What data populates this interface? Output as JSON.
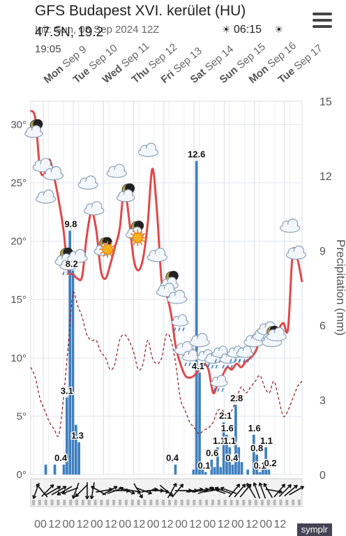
{
  "header": {
    "title": "GFS Budapest XVI. kerület (HU)",
    "init": "Init: Sun, 08 Sep 2024 12Z",
    "coords": "47.5N, 19.2",
    "coords_line2": "19:05",
    "sunrise": "06:15",
    "menu_icon": "hamburger-menu-icon",
    "brand": "symplr"
  },
  "chart_data": {
    "type": "line",
    "days": [
      {
        "day": "Mon",
        "date": "Sep 9"
      },
      {
        "day": "Tue",
        "date": "Sep 10"
      },
      {
        "day": "Wed",
        "date": "Sep 11"
      },
      {
        "day": "Thu",
        "date": "Sep 12"
      },
      {
        "day": "Fri",
        "date": "Sep 13"
      },
      {
        "day": "Sat",
        "date": "Sep 14"
      },
      {
        "day": "Sun",
        "date": "Sep 15"
      },
      {
        "day": "Mon",
        "date": "Sep 16"
      },
      {
        "day": "Tue",
        "date": "Sep 17"
      }
    ],
    "temp_axis": {
      "min": 0,
      "max": 32,
      "ticks": [
        "0°",
        "5°",
        "10°",
        "15°",
        "20°",
        "25°",
        "30°"
      ]
    },
    "precip_axis": {
      "min": 0,
      "max": 15,
      "ticks": [
        "0",
        "3",
        "6",
        "9",
        "12",
        "15"
      ],
      "label": "Precipitation (mm)"
    },
    "time_labels": [
      "00",
      "12",
      "00",
      "12",
      "00",
      "12",
      "00",
      "12",
      "00",
      "12",
      "00",
      "12",
      "00",
      "12",
      "00",
      "12",
      "00",
      "12"
    ],
    "temperature": [
      31.2,
      30.5,
      26.2,
      25.8,
      27.0,
      25.5,
      23.5,
      21.0,
      17.5,
      17.2,
      16.8,
      17.0,
      20.5,
      22.5,
      21.0,
      17.5,
      16.8,
      18.0,
      19.5,
      21.0,
      24.5,
      22.0,
      18.5,
      17.5,
      18.5,
      21.5,
      26.2,
      22.5,
      16.5,
      15.5,
      13.8,
      11.0,
      9.5,
      8.5,
      8.3,
      8.5,
      9.0,
      9.5,
      9.0,
      7.0,
      7.8,
      8.5,
      9.2,
      9.0,
      9.5,
      9.2,
      9.7,
      10.0,
      10.5,
      11.5,
      11.8,
      11.8,
      12.0,
      12.5,
      13.0,
      12.5,
      19.0,
      18.5,
      16.5
    ],
    "dewpoint": [
      9.2,
      8.3,
      6.5,
      5.5,
      4.5,
      3.9,
      3.4,
      6.5,
      11.0,
      15.5,
      14.5,
      13.5,
      12.0,
      11.5,
      11.5,
      10.5,
      10.0,
      9.0,
      9.5,
      11.5,
      12.0,
      11.5,
      10.5,
      9.0,
      9.5,
      11.5,
      10.0,
      9.5,
      10.0,
      12.0,
      11.5,
      9.5,
      6.5,
      5.5,
      4.5,
      4.0,
      3.5,
      3.8,
      4.0,
      4.5,
      5.5,
      5.5,
      5.0,
      5.5,
      6.5,
      7.5,
      7.0,
      7.5,
      8.0,
      8.5,
      7.5,
      7.0,
      8.0,
      6.5,
      5.0,
      5.5,
      6.5,
      7.5,
      8.0
    ],
    "precip_bars": [
      {
        "t": 5,
        "v": 0.4
      },
      {
        "t": 8,
        "v": 0.4
      },
      {
        "t": 11,
        "v": 0.4
      },
      {
        "t": 12,
        "v": 3.1
      },
      {
        "t": 13,
        "v": 9.8
      },
      {
        "t": 14,
        "v": 8.2
      },
      {
        "t": 15,
        "v": 2.0
      },
      {
        "t": 16,
        "v": 1.3
      },
      {
        "t": 48,
        "v": 0.4
      },
      {
        "t": 54,
        "v": 0.2
      },
      {
        "t": 55,
        "v": 12.6
      },
      {
        "t": 56,
        "v": 4.1
      },
      {
        "t": 57,
        "v": 0.3
      },
      {
        "t": 58,
        "v": 0.1
      },
      {
        "t": 60,
        "v": 0.6
      },
      {
        "t": 61,
        "v": 0.3
      },
      {
        "t": 62,
        "v": 1.1
      },
      {
        "t": 63,
        "v": 0.3
      },
      {
        "t": 64,
        "v": 2.1
      },
      {
        "t": 65,
        "v": 1.6
      },
      {
        "t": 66,
        "v": 1.1
      },
      {
        "t": 67,
        "v": 0.4
      },
      {
        "t": 68,
        "v": 2.8
      },
      {
        "t": 69,
        "v": 1.1
      },
      {
        "t": 70,
        "v": 0.5
      },
      {
        "t": 72,
        "v": 0.2
      },
      {
        "t": 74,
        "v": 1.6
      },
      {
        "t": 75,
        "v": 0.8
      },
      {
        "t": 76,
        "v": 0.1
      },
      {
        "t": 77,
        "v": 0.3
      },
      {
        "t": 78,
        "v": 1.1
      },
      {
        "t": 79,
        "v": 0.2
      }
    ],
    "bar_labels": [
      {
        "t": 10,
        "v": "0.4"
      },
      {
        "t": 12,
        "v": "3.1"
      },
      {
        "t": 13.3,
        "v": "9.8"
      },
      {
        "t": 13.6,
        "v": "8.2"
      },
      {
        "t": 15.5,
        "v": "1.3"
      },
      {
        "t": 47,
        "v": "0.4"
      },
      {
        "t": 55,
        "v": "12.6"
      },
      {
        "t": 55.5,
        "v": "4.1"
      },
      {
        "t": 57.5,
        "v": "0.1"
      },
      {
        "t": 60.2,
        "v": "0.6"
      },
      {
        "t": 62.5,
        "v": "1.1"
      },
      {
        "t": 64.6,
        "v": "2.1"
      },
      {
        "t": 65.2,
        "v": "1.6"
      },
      {
        "t": 66,
        "v": "1.1"
      },
      {
        "t": 66.7,
        "v": "0.4"
      },
      {
        "t": 68.3,
        "v": "2.8"
      },
      {
        "t": 74.2,
        "v": "1.6"
      },
      {
        "t": 75,
        "v": "0.8"
      },
      {
        "t": 76,
        "v": "0.1"
      },
      {
        "t": 78.2,
        "v": "1.1"
      },
      {
        "t": 79.5,
        "v": "0.2"
      }
    ],
    "icons": [
      {
        "t": 1,
        "temp": 29.5,
        "kind": "moon-cloud"
      },
      {
        "t": 4,
        "temp": 26.5,
        "kind": "cloud"
      },
      {
        "t": 7.5,
        "temp": 25.8,
        "kind": "cloud"
      },
      {
        "t": 5,
        "temp": 23.8,
        "kind": "cloud"
      },
      {
        "t": 11,
        "temp": 18.5,
        "kind": "moon-cloud"
      },
      {
        "t": 12.5,
        "temp": 18.0,
        "kind": "rain"
      },
      {
        "t": 15.5,
        "temp": 18.7,
        "kind": "cloud"
      },
      {
        "t": 19,
        "temp": 25.0,
        "kind": "cloud"
      },
      {
        "t": 21,
        "temp": 22.8,
        "kind": "cloud"
      },
      {
        "t": 24,
        "temp": 19.4,
        "kind": "moon-cloud"
      },
      {
        "t": 25.5,
        "temp": 19.3,
        "kind": "sun"
      },
      {
        "t": 28.5,
        "temp": 26.0,
        "kind": "cloud"
      },
      {
        "t": 31.5,
        "temp": 24.0,
        "kind": "moon-cloud"
      },
      {
        "t": 34.5,
        "temp": 20.8,
        "kind": "moon-cloud"
      },
      {
        "t": 35.5,
        "temp": 20.3,
        "kind": "sun"
      },
      {
        "t": 39,
        "temp": 27.8,
        "kind": "cloud"
      },
      {
        "t": 42,
        "temp": 18.8,
        "kind": "cloud"
      },
      {
        "t": 46,
        "temp": 16.5,
        "kind": "moon-cloud"
      },
      {
        "t": 45,
        "temp": 15.8,
        "kind": "cloud"
      },
      {
        "t": 48.5,
        "temp": 15.2,
        "kind": "cloud"
      },
      {
        "t": 49.5,
        "temp": 13.2,
        "kind": "rain"
      },
      {
        "t": 51,
        "temp": 10.8,
        "kind": "cloud"
      },
      {
        "t": 53,
        "temp": 10.2,
        "kind": "rain"
      },
      {
        "t": 56,
        "temp": 11.5,
        "kind": "cloud"
      },
      {
        "t": 58,
        "temp": 10.2,
        "kind": "rain"
      },
      {
        "t": 60.5,
        "temp": 10.0,
        "kind": "rain"
      },
      {
        "t": 62.5,
        "temp": 8.0,
        "kind": "rain"
      },
      {
        "t": 63,
        "temp": 10.5,
        "kind": "rain"
      },
      {
        "t": 65.5,
        "temp": 10.0,
        "kind": "rain"
      },
      {
        "t": 68,
        "temp": 10.5,
        "kind": "rain"
      },
      {
        "t": 71,
        "temp": 10.5,
        "kind": "rain"
      },
      {
        "t": 74,
        "temp": 11.5,
        "kind": "cloud"
      },
      {
        "t": 77,
        "temp": 12.0,
        "kind": "cloud"
      },
      {
        "t": 78.5,
        "temp": 12.5,
        "kind": "cloud"
      },
      {
        "t": 79.5,
        "temp": 11.8,
        "kind": "moon-cloud"
      },
      {
        "t": 80,
        "temp": 11.5,
        "kind": "cloud"
      },
      {
        "t": 81.5,
        "temp": 12.0,
        "kind": "cloud"
      },
      {
        "t": 86,
        "temp": 21.3,
        "kind": "cloud"
      },
      {
        "t": 88,
        "temp": 19.0,
        "kind": "cloud"
      }
    ],
    "wind_dirs": [
      200,
      320,
      45,
      60,
      60,
      240,
      250,
      200,
      225,
      180,
      190,
      300,
      80,
      60,
      70,
      90,
      110,
      100,
      150,
      110,
      80,
      90,
      100,
      130,
      30,
      40,
      90,
      90,
      80,
      80,
      70,
      80,
      290,
      290,
      290,
      40,
      40,
      40,
      330,
      340,
      340,
      330,
      100,
      40,
      45,
      50,
      60
    ],
    "colors": {
      "temperature": "#e04848",
      "dewpoint": "#8b1a1a",
      "precip": "#3f7fbf",
      "grid": "#d5dce6",
      "axis_text": "#555555"
    }
  }
}
